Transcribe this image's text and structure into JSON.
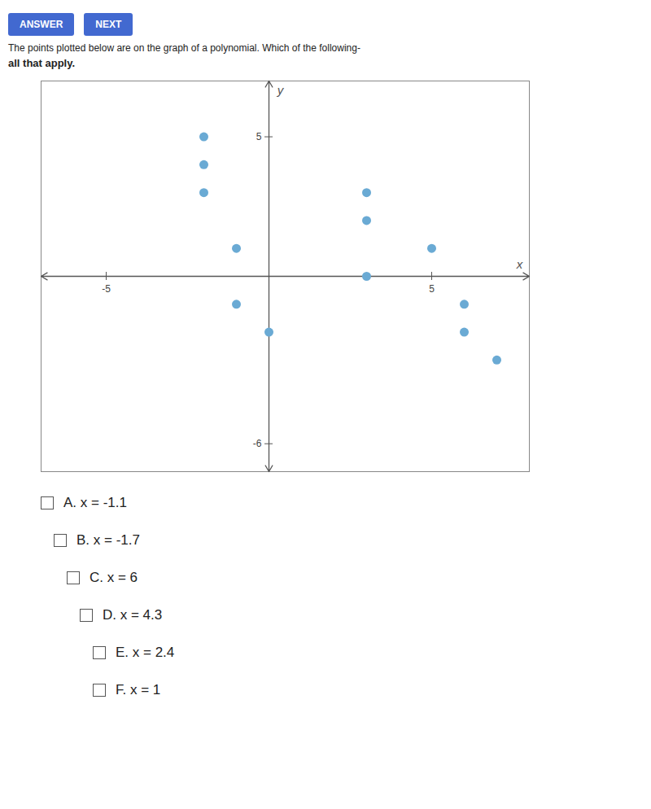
{
  "chart_data": {
    "type": "scatter",
    "title": "The points plotted below are on the graph of a polynomial. Which of the following-",
    "subtitle": "all that apply.",
    "x": [
      -2,
      -2,
      -2,
      -1,
      -1,
      0,
      3,
      3,
      3,
      5,
      6,
      6,
      7
    ],
    "values": [
      5,
      4,
      3,
      1,
      -1,
      -2,
      3,
      2,
      0,
      1,
      -1,
      -2,
      -3
    ],
    "color": "#6aaad4",
    "xlim": [
      -7,
      8
    ],
    "ylim": [
      -7,
      7
    ],
    "xticks": [
      -5,
      5
    ],
    "yticks": [
      -6,
      5
    ],
    "xlabel": "x",
    "ylabel": "y",
    "grid": false,
    "buttons": [
      "ANSWER",
      "NEXT"
    ],
    "annotations": [
      "A.  x = -1.1",
      "B.  x = -1.7",
      "C.  x = 6",
      "D.  x = 4.3",
      "E.  x = 2.4",
      "F.  x = 1"
    ]
  }
}
